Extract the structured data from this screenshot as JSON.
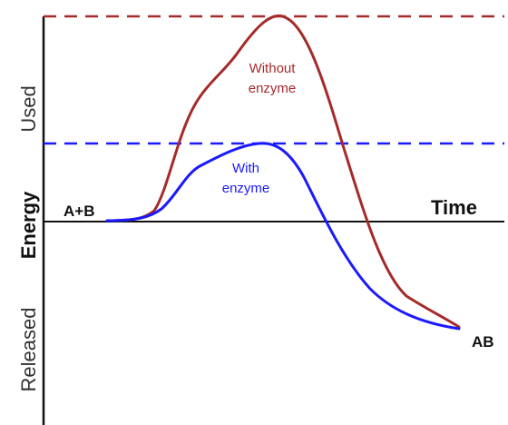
{
  "labels": {
    "used": "Used",
    "energy": "Energy",
    "released": "Released",
    "time": "Time",
    "reactants": "A+B",
    "product": "AB"
  },
  "curves": {
    "without_enzyme": {
      "line1": "Without",
      "line2": "enzyme",
      "color": "#a52a2a"
    },
    "with_enzyme": {
      "line1": "With",
      "line2": "enzyme",
      "color": "#1a1aff"
    }
  },
  "colors": {
    "axis": "#111111",
    "background": "#ffffff"
  }
}
